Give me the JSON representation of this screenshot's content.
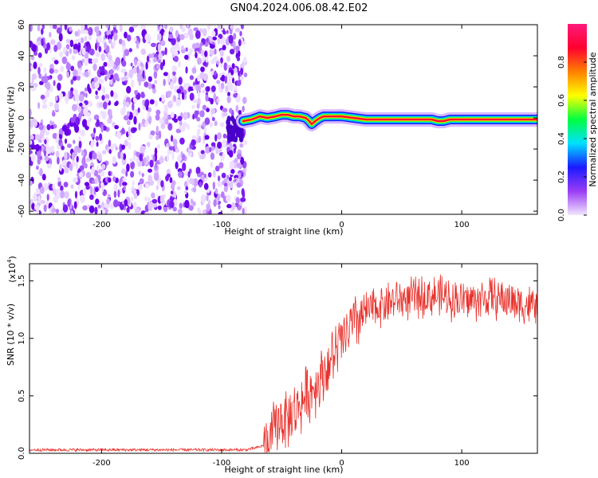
{
  "figure": {
    "title": "GN04.2024.006.08.42.E02"
  },
  "colors": {
    "snr_line": "#e8302a",
    "ridge": "#e0142c",
    "noise": "#7a1cf0",
    "colorbar_stops": [
      "#f2e6ff",
      "#9a3cf5",
      "#1a1aff",
      "#00e0ff",
      "#00ff40",
      "#ffff00",
      "#ff8000",
      "#ff0030",
      "#ff1a7a"
    ]
  },
  "chart_data": [
    {
      "type": "heatmap",
      "title": "GN04.2024.006.08.42.E02",
      "xlabel": "Height of straight line (km)",
      "ylabel": "Frequency (Hz)",
      "xlim": [
        -260,
        163
      ],
      "ylim": [
        -62,
        60
      ],
      "xticks": [
        -200,
        -100,
        0,
        100
      ],
      "yticks": [
        -60,
        -40,
        -20,
        0,
        20,
        40,
        60
      ],
      "colorbar": {
        "label": "Normalized spectral amplitude",
        "range": [
          0,
          1
        ],
        "ticks": [
          0.0,
          0.2,
          0.4,
          0.6,
          0.8
        ]
      },
      "noise_region_x": [
        -260,
        -80
      ],
      "ridge": {
        "x": [
          -82,
          -75,
          -68,
          -62,
          -55,
          -50,
          -45,
          -40,
          -35,
          -30,
          -27,
          -25,
          -22,
          -18,
          -15,
          -10,
          0,
          10,
          20,
          30,
          40,
          50,
          60,
          70,
          75,
          80,
          85,
          90,
          95,
          100,
          110,
          120,
          130,
          140,
          150,
          163
        ],
        "y": [
          -2,
          -1,
          1,
          0,
          1,
          2,
          2,
          1,
          1,
          0,
          -2,
          -4,
          -2,
          0,
          1,
          1,
          1,
          0,
          -1,
          -1,
          -1,
          -1,
          -1,
          -1,
          -1,
          -2,
          -2,
          -1,
          -1,
          -1,
          -1,
          -1,
          -1,
          -1,
          -1,
          -1
        ]
      }
    },
    {
      "type": "line",
      "xlabel": "Height of straight line (km)",
      "ylabel": "SNR (10 * v/v)",
      "yscale_label": "(x10",
      "yscale_exp": "4",
      "xlim": [
        -260,
        163
      ],
      "ylim": [
        0,
        1.65
      ],
      "xticks": [
        -200,
        -100,
        0,
        100
      ],
      "yticks": [
        0.0,
        0.5,
        1.0,
        1.5
      ],
      "series": [
        {
          "x": [
            -260,
            -200,
            -150,
            -100,
            -80,
            -70,
            -62,
            -58,
            -55,
            -50,
            -45,
            -40,
            -35,
            -30,
            -25,
            -20,
            -15,
            -10,
            -5,
            0,
            5,
            10,
            15,
            20,
            25,
            30,
            40,
            50,
            60,
            70,
            80,
            90,
            100,
            110,
            120,
            130,
            140,
            150,
            160,
            163
          ],
          "values": [
            0.03,
            0.03,
            0.03,
            0.03,
            0.03,
            0.05,
            0.08,
            0.15,
            0.25,
            0.3,
            0.3,
            0.35,
            0.42,
            0.5,
            0.55,
            0.62,
            0.7,
            0.78,
            0.88,
            0.97,
            1.05,
            1.12,
            1.18,
            1.22,
            1.25,
            1.28,
            1.32,
            1.34,
            1.35,
            1.37,
            1.37,
            1.35,
            1.33,
            1.33,
            1.35,
            1.35,
            1.33,
            1.3,
            1.28,
            1.27
          ]
        }
      ]
    }
  ]
}
